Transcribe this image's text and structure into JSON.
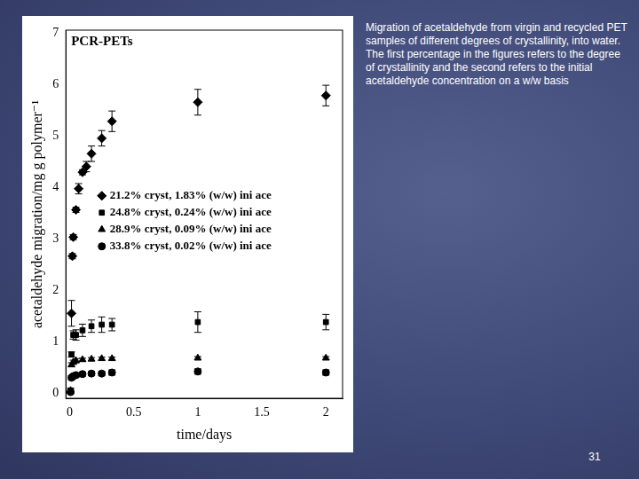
{
  "chart_data": {
    "type": "scatter",
    "title": "PCR-PETs",
    "x_label": "time/days",
    "y_label": "acetaldehyde migration/mg g polymer⁻¹",
    "xlim": [
      -0.03,
      2.13
    ],
    "xticks": [
      0,
      0.5,
      1,
      1.5,
      2
    ],
    "ylim": [
      -0.1,
      7.05
    ],
    "yticks": [
      0,
      1,
      2,
      3,
      4,
      5,
      6,
      7
    ],
    "grid": false,
    "legend": "center",
    "series": [
      {
        "name": "21.2% cryst, 1.83% (w/w) ini ace",
        "color": "#000000",
        "marker": "diamond",
        "x": [
          0.014,
          0.021,
          0.028,
          0.049,
          0.07,
          0.1,
          0.13,
          0.17,
          0.25,
          0.33,
          1,
          2
        ],
        "values": [
          1.55,
          2.66,
          3.03,
          3.56,
          3.97,
          4.29,
          4.4,
          4.65,
          4.95,
          5.28,
          5.65,
          5.78
        ],
        "errors": [
          0.25,
          0.05,
          0.05,
          0.05,
          0.1,
          0.05,
          0.1,
          0.15,
          0.15,
          0.2,
          0.25,
          0.2
        ]
      },
      {
        "name": "24.8% cryst, 0.24% (w/w) ini ace",
        "color": "#000000",
        "marker": "square",
        "x": [
          0.007,
          0.014,
          0.028,
          0.049,
          0.1,
          0.17,
          0.25,
          0.33,
          1,
          2
        ],
        "values": [
          0.05,
          0.75,
          1.13,
          1.13,
          1.22,
          1.3,
          1.33,
          1.33,
          1.38,
          1.38
        ],
        "errors": [
          0.05,
          0.05,
          0.08,
          0.1,
          0.12,
          0.12,
          0.15,
          0.12,
          0.2,
          0.15
        ]
      },
      {
        "name": "28.9% cryst, 0.09% (w/w) ini ace",
        "color": "#000000",
        "marker": "triangle",
        "x": [
          0.007,
          0.014,
          0.028,
          0.049,
          0.1,
          0.17,
          0.25,
          0.33,
          1,
          2
        ],
        "values": [
          0.05,
          0.55,
          0.6,
          0.63,
          0.65,
          0.66,
          0.67,
          0.67,
          0.68,
          0.68
        ],
        "errors": [
          0.02,
          0.04,
          0.04,
          0.04,
          0.03,
          0.03,
          0.03,
          0.03,
          0.03,
          0.03
        ]
      },
      {
        "name": "33.8% cryst, 0.02% (w/w) ini ace",
        "color": "#000000",
        "marker": "circle",
        "x": [
          0.007,
          0.014,
          0.028,
          0.049,
          0.1,
          0.17,
          0.25,
          0.33,
          1,
          2
        ],
        "values": [
          0.02,
          0.3,
          0.33,
          0.35,
          0.37,
          0.38,
          0.38,
          0.4,
          0.42,
          0.4
        ],
        "errors": [
          0.02,
          0.04,
          0.04,
          0.04,
          0.04,
          0.04,
          0.04,
          0.05,
          0.05,
          0.05
        ]
      }
    ]
  },
  "slide": {
    "caption": "Migration of acetaldehyde from virgin and recycled PET samples of different degrees of crystallinity, into water. The first percentage in the figures refers to the degree of crystallinity and the second refers to the initial acetaldehyde concentration on a w/w basis",
    "page_number": "31"
  }
}
